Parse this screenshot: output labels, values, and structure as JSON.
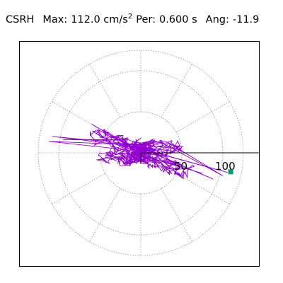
{
  "header": {
    "station": "CSRH",
    "max_label": "Max:",
    "max_value": "112.0 cm/s",
    "max_exp": "2",
    "per_label": "Per:",
    "per_value": "0.600 s",
    "ang_label": "Ang:",
    "ang_value": "-11.9"
  },
  "chart_data": {
    "type": "polar",
    "radial_ticks": [
      50,
      100
    ],
    "radial_max": 125,
    "spokes_deg": [
      0,
      30,
      60,
      90,
      120,
      150,
      180,
      210,
      240,
      270,
      300,
      330
    ],
    "grid": true,
    "series_color": "#9400d3",
    "peak_marker": {
      "magnitude": 112.0,
      "angle_deg": -11.9,
      "color": "#009e73"
    }
  }
}
